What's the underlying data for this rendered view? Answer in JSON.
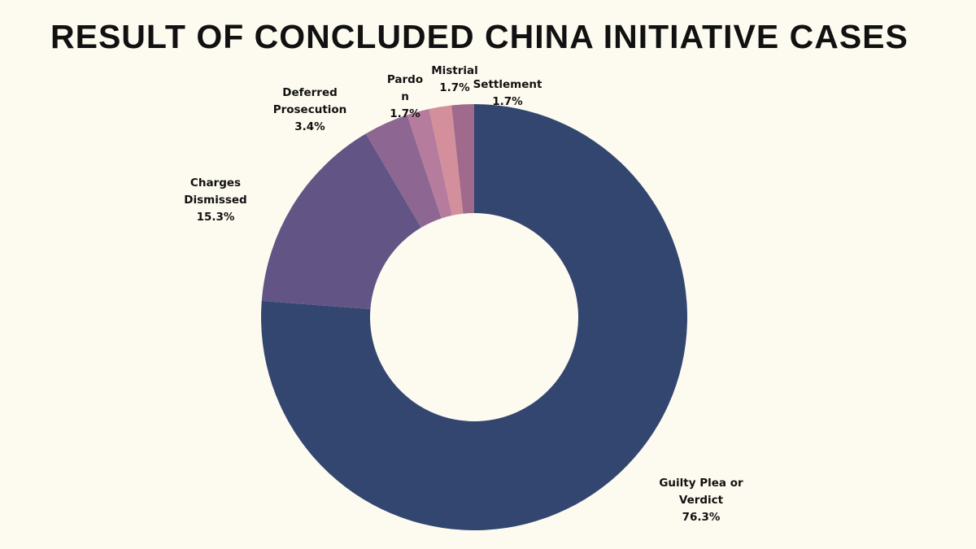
{
  "chart_data": {
    "type": "pie",
    "variant": "donut",
    "title": "RESULT OF CONCLUDED CHINA INITIATIVE CASES",
    "start": "12 o'clock, clockwise",
    "legend": "none",
    "slices": [
      {
        "label": "Guilty Plea or Verdict",
        "lines": [
          "Guilty Plea or",
          "Verdict",
          "76.3%"
        ],
        "value": 76.3,
        "color": "#334670"
      },
      {
        "label": "Charges Dismissed",
        "lines": [
          "Charges",
          "Dismissed",
          "15.3%"
        ],
        "value": 15.3,
        "color": "#625585"
      },
      {
        "label": "Deferred Prosecution",
        "lines": [
          "Deferred",
          "Prosecution",
          "3.4%"
        ],
        "value": 3.4,
        "color": "#8d6791"
      },
      {
        "label": "Pardon",
        "lines": [
          "Pardo",
          "n",
          "1.7%"
        ],
        "value": 1.7,
        "color": "#b67c9e"
      },
      {
        "label": "Mistrial",
        "lines": [
          "Mistrial",
          "1.7%"
        ],
        "value": 1.7,
        "color": "#d48f9c"
      },
      {
        "label": "Settlement",
        "lines": [
          "Settlement",
          "1.7%"
        ],
        "value": 1.7,
        "color": "#a06a8c"
      }
    ]
  }
}
